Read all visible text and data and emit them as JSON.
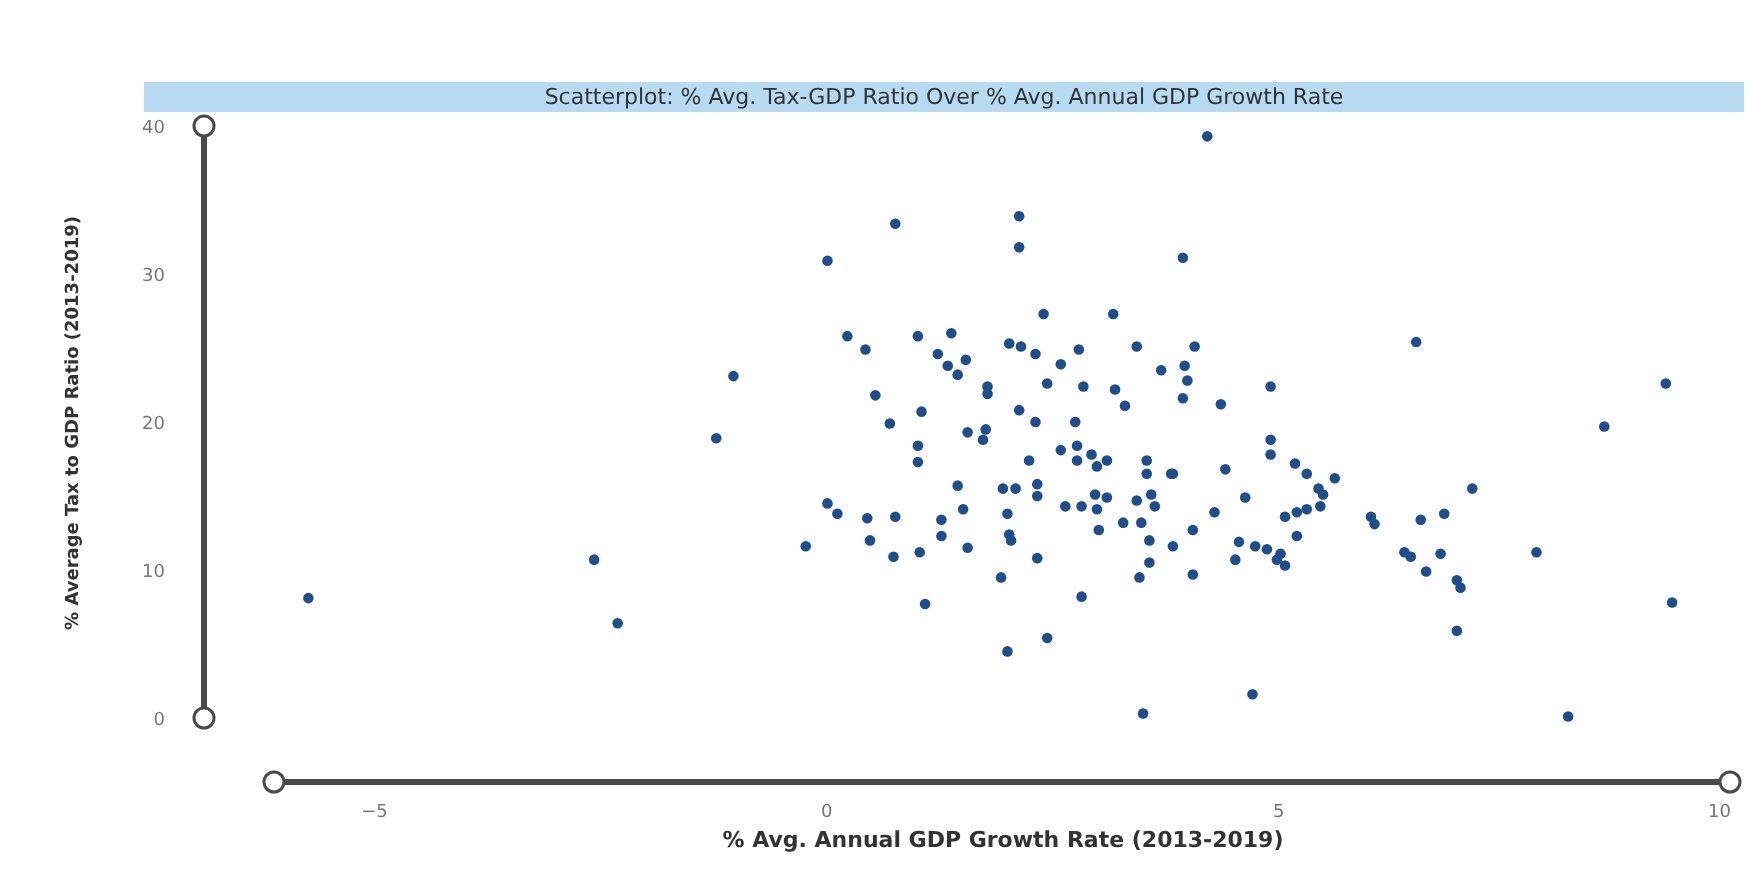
{
  "chart_data": {
    "type": "scatter",
    "title": "Scatterplot: % Avg. Tax-GDP Ratio Over % Avg. Annual GDP Growth Rate",
    "xlabel": "% Avg. Annual GDP Growth Rate (2013-2019)",
    "ylabel": "% Average Tax to GDP Ratio (2013-2019)",
    "xlim": [
      -6.1,
      10
    ],
    "xticks": [
      -5,
      0,
      5,
      10
    ],
    "ylim": [
      0,
      40
    ],
    "yticks": [
      0,
      10,
      20,
      30,
      40
    ],
    "grid": false,
    "legend": false,
    "marker": "circle",
    "series": [
      {
        "color": "#1f4e8c",
        "x": [
          -5.72,
          -2.56,
          -2.3,
          -1.21,
          -1.02,
          0.02,
          -0.22,
          0.02,
          0.13,
          0.46,
          0.49,
          0.24,
          0.44,
          0.55,
          4.22,
          0.77,
          2.14,
          2.14,
          3.95,
          2.41,
          3.18,
          6.53,
          9.29,
          8.61,
          1.02,
          1.39,
          1.24,
          1.35,
          1.46,
          1.55,
          2.03,
          2.16,
          2.32,
          2.6,
          2.8,
          3.44,
          4.08,
          3.71,
          3.97,
          4.0,
          1.06,
          0.71,
          1.79,
          1.79,
          2.45,
          2.85,
          3.2,
          3.31,
          3.95,
          4.37,
          4.92,
          2.14,
          2.32,
          2.76,
          1.57,
          1.77,
          1.74,
          1.02,
          1.02,
          2.25,
          2.6,
          2.78,
          2.94,
          3.11,
          3.55,
          3.82,
          4.42,
          4.92,
          4.92,
          5.19,
          5.32,
          5.63,
          2.78,
          3.0,
          3.55,
          3.84,
          1.46,
          1.96,
          2.1,
          2.34,
          2.34,
          2.65,
          2.83,
          2.98,
          3.0,
          3.11,
          3.44,
          3.6,
          3.64,
          4.3,
          4.64,
          5.08,
          5.21,
          5.32,
          5.47,
          5.5,
          5.45,
          6.03,
          6.07,
          6.58,
          6.84,
          7.15,
          0.77,
          0.75,
          1.04,
          1.28,
          1.52,
          1.28,
          1.57,
          2.01,
          2.03,
          2.05,
          2.34,
          1.94,
          1.1,
          2.83,
          2.45,
          2.01,
          3.02,
          3.29,
          3.49,
          3.58,
          3.58,
          3.47,
          3.84,
          4.06,
          4.06,
          4.53,
          4.57,
          4.75,
          4.88,
          4.99,
          5.03,
          5.08,
          5.21,
          6.4,
          6.47,
          6.64,
          6.8,
          6.98,
          7.02,
          6.98,
          7.86,
          9.36,
          8.21,
          4.72,
          3.51
        ],
        "values": [
          8.1,
          10.7,
          6.4,
          18.9,
          23.1,
          30.9,
          11.6,
          14.5,
          13.8,
          13.5,
          12.0,
          25.8,
          24.9,
          21.8,
          39.3,
          33.4,
          33.9,
          31.8,
          31.1,
          27.3,
          27.3,
          25.4,
          22.6,
          19.7,
          25.8,
          26.0,
          24.6,
          23.8,
          23.2,
          24.2,
          25.3,
          25.1,
          24.6,
          23.9,
          24.9,
          25.1,
          25.1,
          23.5,
          23.8,
          22.8,
          20.7,
          19.9,
          22.4,
          21.9,
          22.6,
          22.4,
          22.2,
          21.1,
          21.6,
          21.2,
          22.4,
          20.8,
          20.0,
          20.0,
          19.3,
          19.5,
          18.8,
          18.4,
          17.3,
          17.4,
          18.1,
          18.4,
          17.8,
          17.4,
          17.4,
          16.5,
          16.8,
          18.8,
          17.8,
          17.2,
          16.5,
          16.2,
          17.4,
          17.0,
          16.5,
          16.5,
          15.7,
          15.5,
          15.5,
          15.8,
          15.0,
          14.3,
          14.3,
          15.1,
          14.1,
          14.9,
          14.7,
          15.1,
          14.3,
          13.9,
          14.9,
          13.6,
          13.9,
          14.1,
          14.3,
          15.1,
          15.5,
          13.6,
          13.1,
          13.4,
          13.8,
          15.5,
          13.6,
          10.9,
          11.2,
          13.4,
          14.1,
          12.3,
          11.5,
          13.8,
          12.4,
          12.0,
          10.8,
          9.5,
          7.7,
          8.2,
          5.4,
          4.5,
          12.7,
          13.2,
          13.2,
          12.0,
          10.5,
          9.5,
          11.6,
          12.7,
          9.7,
          10.7,
          11.9,
          11.6,
          11.4,
          10.7,
          11.1,
          10.3,
          12.3,
          11.2,
          10.9,
          9.9,
          11.1,
          9.3,
          8.8,
          5.9,
          11.2,
          7.8,
          0.1,
          1.6,
          0.3
        ]
      }
    ]
  }
}
